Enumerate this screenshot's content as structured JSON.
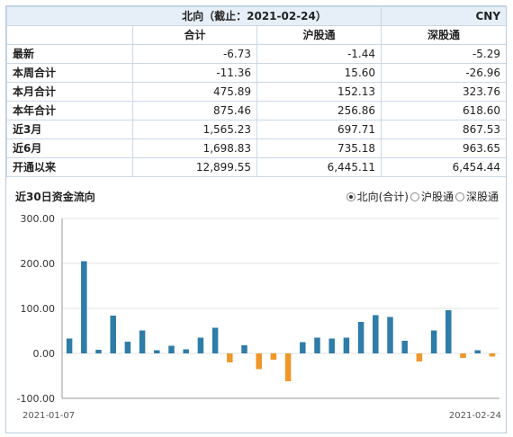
{
  "header": {
    "title": "北向（截止：2021-02-24）",
    "currency": "CNY"
  },
  "columns": [
    "合计",
    "沪股通",
    "深股通"
  ],
  "rows": [
    {
      "label": "最新",
      "values": [
        "-6.73",
        "-1.44",
        "-5.29"
      ]
    },
    {
      "label": "本周合计",
      "values": [
        "-11.36",
        "15.60",
        "-26.96"
      ]
    },
    {
      "label": "本月合计",
      "values": [
        "475.89",
        "152.13",
        "323.76"
      ]
    },
    {
      "label": "本年合计",
      "values": [
        "875.46",
        "256.86",
        "618.60"
      ]
    },
    {
      "label": "近3月",
      "values": [
        "1,565.23",
        "697.71",
        "867.53"
      ]
    },
    {
      "label": "近6月",
      "values": [
        "1,698.83",
        "735.18",
        "963.65"
      ]
    },
    {
      "label": "开通以来",
      "values": [
        "12,899.55",
        "6,445.11",
        "6,454.44"
      ]
    }
  ],
  "chart_section": {
    "title": "近30日资金流向",
    "options": [
      {
        "label": "北向(合计)",
        "selected": true
      },
      {
        "label": "沪股通",
        "selected": false
      },
      {
        "label": "深股通",
        "selected": false
      }
    ]
  },
  "colors": {
    "positive": "#2e7ca8",
    "negative": "#f0962a",
    "header_bg": "#e6eef7",
    "grid": "#e3e3e3"
  },
  "chart_data": {
    "type": "bar",
    "series": [
      {
        "name": "北向(合计)",
        "values": [
          33,
          205,
          8,
          84,
          26,
          51,
          7,
          17,
          9,
          35,
          57,
          -20,
          18,
          -35,
          -14,
          -62,
          25,
          35,
          33,
          35,
          70,
          85,
          81,
          28,
          -18,
          51,
          96,
          -10,
          7,
          -7
        ]
      }
    ],
    "x_start_label": "2021-01-07",
    "x_end_label": "2021-02-24",
    "ylim": [
      -100,
      300
    ],
    "yticks": [
      "300.00",
      "200.00",
      "100.00",
      "0.00",
      "-100.00"
    ]
  }
}
